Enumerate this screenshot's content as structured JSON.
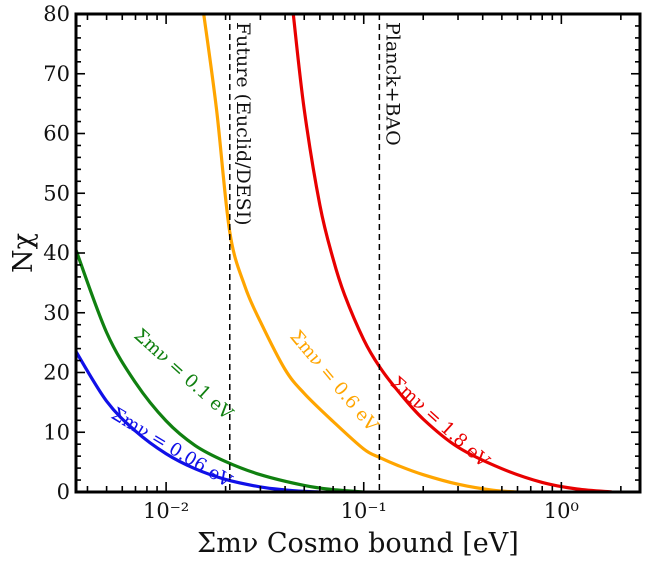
{
  "chart_data": {
    "type": "line",
    "xlabel": "Σmν Cosmo bound [eV]",
    "ylabel": "Nχ",
    "xscale": "log",
    "xlim": [
      0.0035,
      2.5
    ],
    "ylim": [
      0,
      80
    ],
    "grid": false,
    "x_ticks": [
      {
        "value": 0.01,
        "label": "10⁻²"
      },
      {
        "value": 0.1,
        "label": "10⁻¹"
      },
      {
        "value": 1,
        "label": "10⁰"
      }
    ],
    "y_ticks": [
      0,
      10,
      20,
      30,
      40,
      50,
      60,
      70,
      80
    ],
    "vertical_lines": [
      {
        "x": 0.021,
        "label": "Future (Euclid/DESI)"
      },
      {
        "x": 0.12,
        "label": "Planck+BAO"
      }
    ],
    "series": [
      {
        "name": "Σmν = 0.06 eV",
        "color": "#1010e8",
        "x": [
          0.0035,
          0.005,
          0.007,
          0.01,
          0.014,
          0.02,
          0.03,
          0.04,
          0.05,
          0.06
        ],
        "y": [
          23.5,
          15.2,
          10.2,
          6.4,
          3.9,
          2.1,
          0.85,
          0.35,
          0.1,
          0
        ]
      },
      {
        "name": "Σmν = 0.1 eV",
        "color": "#108010",
        "x": [
          0.0035,
          0.005,
          0.007,
          0.01,
          0.014,
          0.02,
          0.03,
          0.05,
          0.07,
          0.1
        ],
        "y": [
          40.5,
          26.7,
          18.3,
          11.9,
          7.8,
          5.1,
          2.9,
          1.1,
          0.4,
          0
        ]
      },
      {
        "name": "Σmν = 0.6 eV",
        "color": "#ffa500",
        "x": [
          0.0155,
          0.018,
          0.021,
          0.025,
          0.03,
          0.04,
          0.05,
          0.07,
          0.1,
          0.12,
          0.15,
          0.2,
          0.3,
          0.45,
          0.6
        ],
        "y": [
          80,
          64,
          43.5,
          34.5,
          28.5,
          20.5,
          16.5,
          11.8,
          7.2,
          5.8,
          4.4,
          2.9,
          1.3,
          0.3,
          0
        ]
      },
      {
        "name": "Σmν = 1.8 eV",
        "color": "#e80000",
        "x": [
          0.044,
          0.05,
          0.06,
          0.07,
          0.08,
          0.1,
          0.12,
          0.15,
          0.2,
          0.3,
          0.5,
          0.8,
          1.2,
          1.8
        ],
        "y": [
          80,
          64,
          48,
          39,
          33,
          25.5,
          21,
          16.8,
          12.2,
          7.5,
          3.9,
          1.6,
          0.5,
          0
        ]
      }
    ]
  }
}
